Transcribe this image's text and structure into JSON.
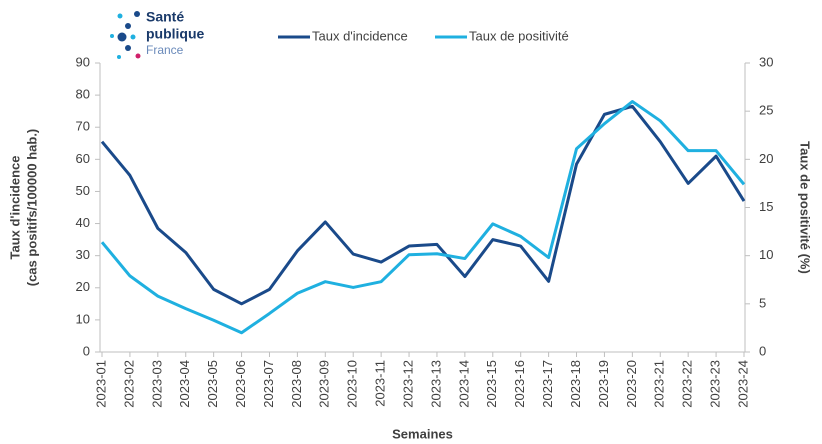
{
  "logo": {
    "lines": [
      "Santé",
      "publique",
      "France"
    ]
  },
  "chart_data": {
    "type": "line",
    "categories": [
      "2023-01",
      "2023-02",
      "2023-03",
      "2023-04",
      "2023-05",
      "2023-06",
      "2023-07",
      "2023-08",
      "2023-09",
      "2023-10",
      "2023-11",
      "2023-12",
      "2023-13",
      "2023-14",
      "2023-15",
      "2023-16",
      "2023-17",
      "2023-18",
      "2023-19",
      "2023-20",
      "2023-21",
      "2023-22",
      "2023-23",
      "2023-24"
    ],
    "series": [
      {
        "name": "Taux d'incidence",
        "color": "#1a4a8a",
        "values": [
          65.5,
          55,
          38.5,
          31,
          19.5,
          15,
          19.5,
          31.5,
          40.5,
          30.5,
          28,
          33,
          33.5,
          23.5,
          35,
          33,
          22,
          58.5,
          74,
          76.5,
          65.5,
          52.5,
          61,
          47
        ]
      },
      {
        "name": "Taux de positivité",
        "color": "#1fb0e0",
        "axis": "y2",
        "values": [
          11.4,
          7.9,
          5.8,
          4.5,
          3.3,
          2.0,
          4.0,
          6.1,
          7.3,
          6.7,
          7.3,
          10.1,
          10.2,
          9.7,
          13.3,
          12.0,
          9.8,
          21.1,
          23.7,
          26.0,
          24.0,
          20.9,
          20.9,
          17.4
        ]
      }
    ],
    "xlabel": "Semaines",
    "ylabel": [
      "Taux d'incidence",
      "(cas positifs/100000 hab.)"
    ],
    "y2label": "Taux de positivité (%)",
    "ylim": [
      0,
      90
    ],
    "yticks": [
      0,
      10,
      20,
      30,
      40,
      50,
      60,
      70,
      80,
      90
    ],
    "y2lim": [
      0,
      30
    ],
    "y2ticks": [
      0,
      5,
      10,
      15,
      20,
      25,
      30
    ],
    "legend": "top"
  }
}
